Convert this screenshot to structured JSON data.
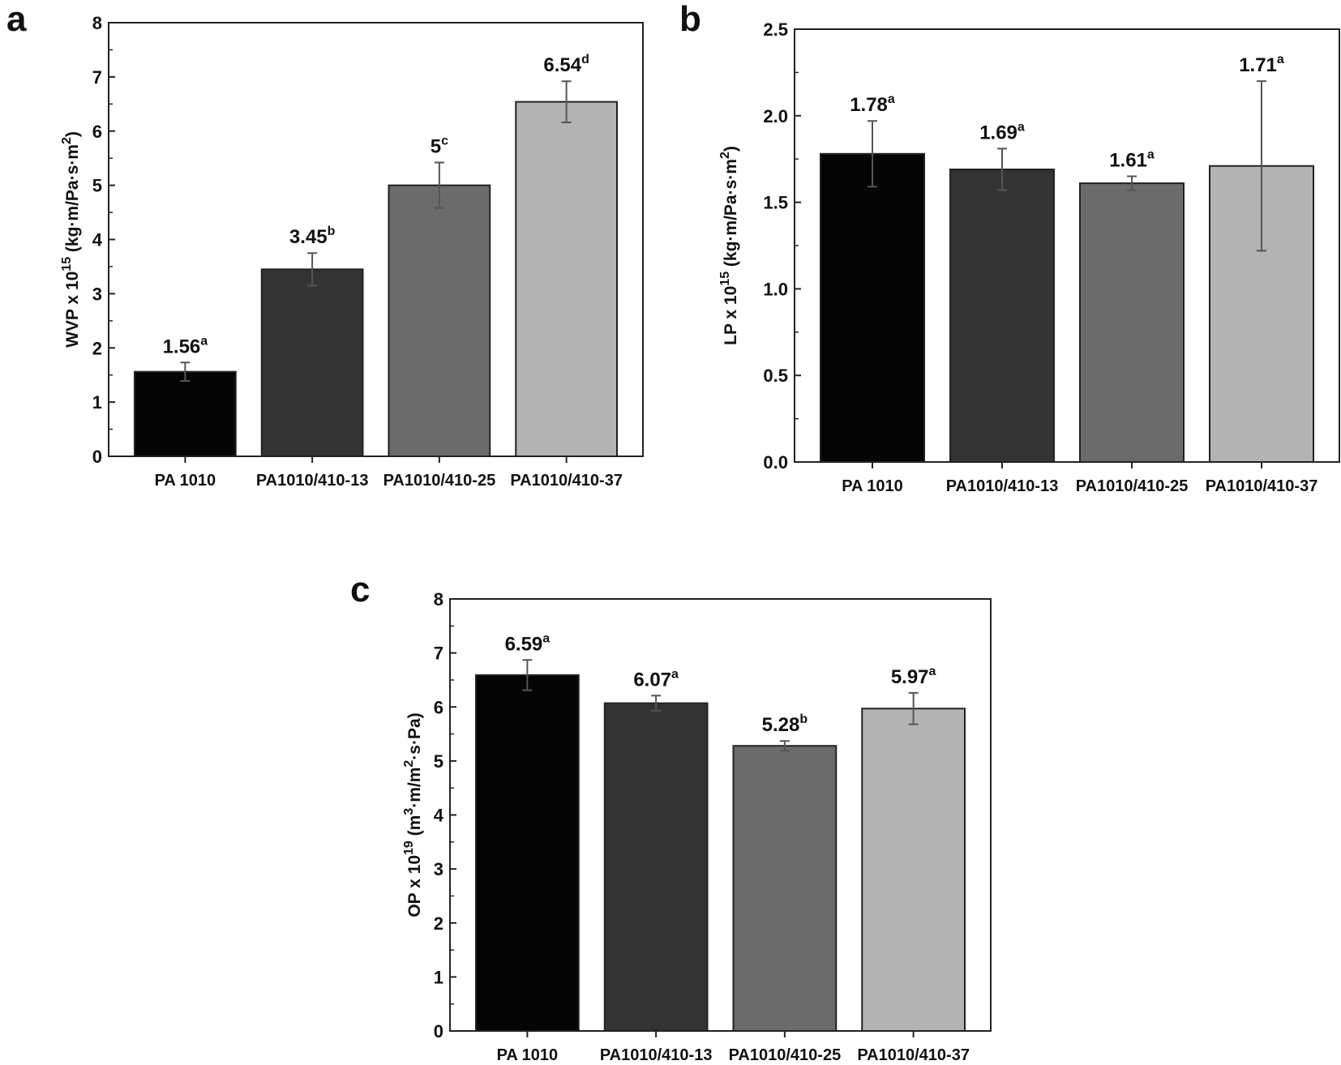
{
  "chart_data": [
    {
      "id": "a",
      "panel_label": "a",
      "type": "bar",
      "categories": [
        "PA 1010",
        "PA1010/410-13",
        "PA1010/410-25",
        "PA1010/410-37"
      ],
      "values": [
        1.56,
        3.45,
        5,
        6.54
      ],
      "errors": [
        0.17,
        0.3,
        0.42,
        0.38
      ],
      "value_labels": [
        "1.56",
        "3.45",
        "5",
        "6.54"
      ],
      "letters": [
        "a",
        "b",
        "c",
        "d"
      ],
      "ylabel_main": "WVP x 10",
      "ylabel_exp": "15",
      "ylabel_units": "(kg·m/Pa·s·m",
      "ylabel_units_exp": "2",
      "ylabel_close": ")",
      "ylim": [
        0,
        8
      ],
      "yticks": [
        0,
        1,
        2,
        3,
        4,
        5,
        6,
        7,
        8
      ],
      "ytick_labels": [
        "0",
        "1",
        "2",
        "3",
        "4",
        "5",
        "6",
        "7",
        "8"
      ],
      "colors": [
        "#050505",
        "#333333",
        "#6b6b6b",
        "#b3b3b3"
      ]
    },
    {
      "id": "b",
      "panel_label": "b",
      "type": "bar",
      "categories": [
        "PA 1010",
        "PA1010/410-13",
        "PA1010/410-25",
        "PA1010/410-37"
      ],
      "values": [
        1.78,
        1.69,
        1.61,
        1.71
      ],
      "errors": [
        0.19,
        0.12,
        0.04,
        0.49
      ],
      "value_labels": [
        "1.78",
        "1.69",
        "1.61",
        "1.71"
      ],
      "letters": [
        "a",
        "a",
        "a",
        "a"
      ],
      "ylabel_main": "LP x 10",
      "ylabel_exp": "15",
      "ylabel_units": "(kg·m/Pa·s·m",
      "ylabel_units_exp": "2",
      "ylabel_close": ")",
      "ylim": [
        0,
        2.5
      ],
      "yticks": [
        0,
        0.5,
        1,
        1.5,
        2,
        2.5
      ],
      "ytick_labels": [
        "0.0",
        "0.5",
        "1.0",
        "1.5",
        "2.0",
        "2.5"
      ],
      "colors": [
        "#050505",
        "#333333",
        "#6b6b6b",
        "#b3b3b3"
      ]
    },
    {
      "id": "c",
      "panel_label": "c",
      "type": "bar",
      "categories": [
        "PA 1010",
        "PA1010/410-13",
        "PA1010/410-25",
        "PA1010/410-37"
      ],
      "values": [
        6.59,
        6.07,
        5.28,
        5.97
      ],
      "errors": [
        0.28,
        0.14,
        0.09,
        0.29
      ],
      "value_labels": [
        "6.59",
        "6.07",
        "5.28",
        "5.97"
      ],
      "letters": [
        "a",
        "a",
        "b",
        "a"
      ],
      "ylabel_main": "OP x 10",
      "ylabel_exp": "19",
      "ylabel_units": "(m",
      "ylabel_units_exp": "3",
      "ylabel_units2": "·m/m",
      "ylabel_units2_exp": "2",
      "ylabel_close": "·s·Pa)",
      "ylim": [
        0,
        8
      ],
      "yticks": [
        0,
        1,
        2,
        3,
        4,
        5,
        6,
        7,
        8
      ],
      "ytick_labels": [
        "0",
        "1",
        "2",
        "3",
        "4",
        "5",
        "6",
        "7",
        "8"
      ],
      "colors": [
        "#050505",
        "#333333",
        "#6b6b6b",
        "#b3b3b3"
      ]
    }
  ]
}
